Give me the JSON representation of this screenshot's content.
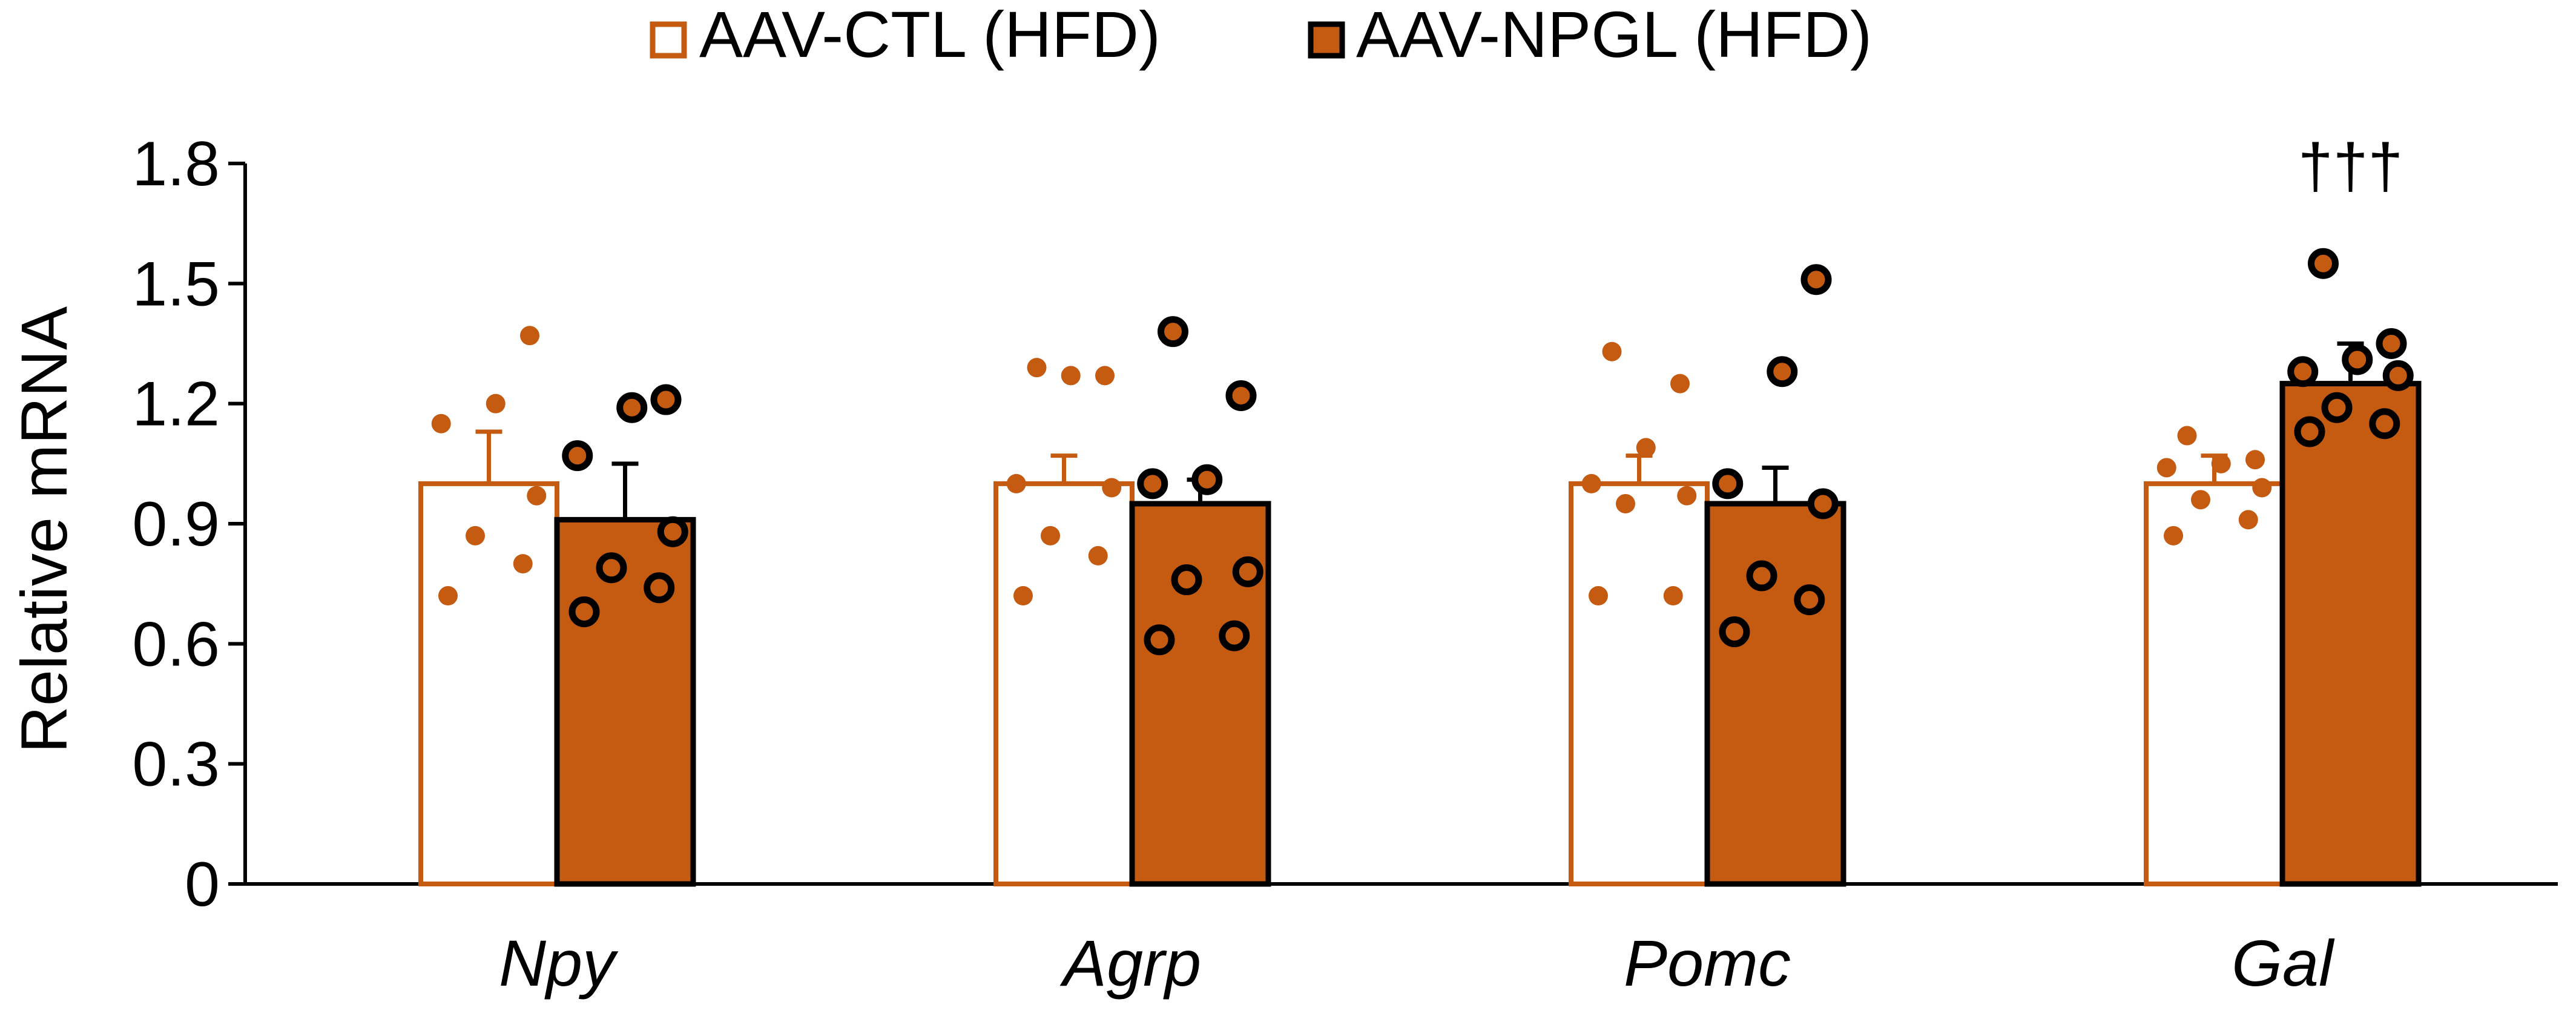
{
  "chart_data": {
    "type": "bar",
    "title": "",
    "xlabel": "",
    "ylabel": "Relative mRNA",
    "ylim": [
      0,
      1.8
    ],
    "yticks": [
      "0",
      "0.3",
      "0.6",
      "0.9",
      "1.2",
      "1.5",
      "1.8"
    ],
    "grid": false,
    "legend_position": "top-center",
    "categories": [
      "Npy",
      "Agrp",
      "Pomc",
      "Gal"
    ],
    "series": [
      {
        "name": "AAV-CTL (HFD)",
        "style": "outline",
        "color": "#c55a11",
        "values": [
          1.0,
          1.0,
          1.0,
          1.0
        ],
        "error": [
          0.13,
          0.07,
          0.07,
          0.07
        ],
        "points": [
          [
            0.72,
            0.8,
            0.87,
            0.97,
            1.15,
            1.2,
            1.37
          ],
          [
            0.72,
            0.82,
            0.87,
            0.99,
            1.0,
            1.27,
            1.27,
            1.29
          ],
          [
            0.72,
            0.72,
            0.95,
            0.97,
            1.0,
            1.09,
            1.25,
            1.33
          ],
          [
            0.87,
            0.91,
            0.96,
            0.99,
            1.04,
            1.05,
            1.06,
            1.12
          ]
        ]
      },
      {
        "name": "AAV-NPGL (HFD)",
        "style": "filled",
        "color": "#c55a11",
        "values": [
          0.91,
          0.95,
          0.95,
          1.25
        ],
        "error": [
          0.14,
          0.06,
          0.09,
          0.1
        ],
        "points": [
          [
            0.68,
            0.74,
            0.79,
            0.88,
            1.07,
            1.19,
            1.21
          ],
          [
            0.61,
            0.62,
            0.76,
            0.78,
            1.0,
            1.01,
            1.22,
            1.38
          ],
          [
            0.63,
            0.71,
            0.77,
            0.95,
            1.0,
            1.28,
            1.51
          ],
          [
            1.13,
            1.15,
            1.19,
            1.27,
            1.28,
            1.31,
            1.35,
            1.55
          ]
        ]
      }
    ],
    "annotations": [
      {
        "category": "Gal",
        "text": "†††"
      }
    ]
  }
}
